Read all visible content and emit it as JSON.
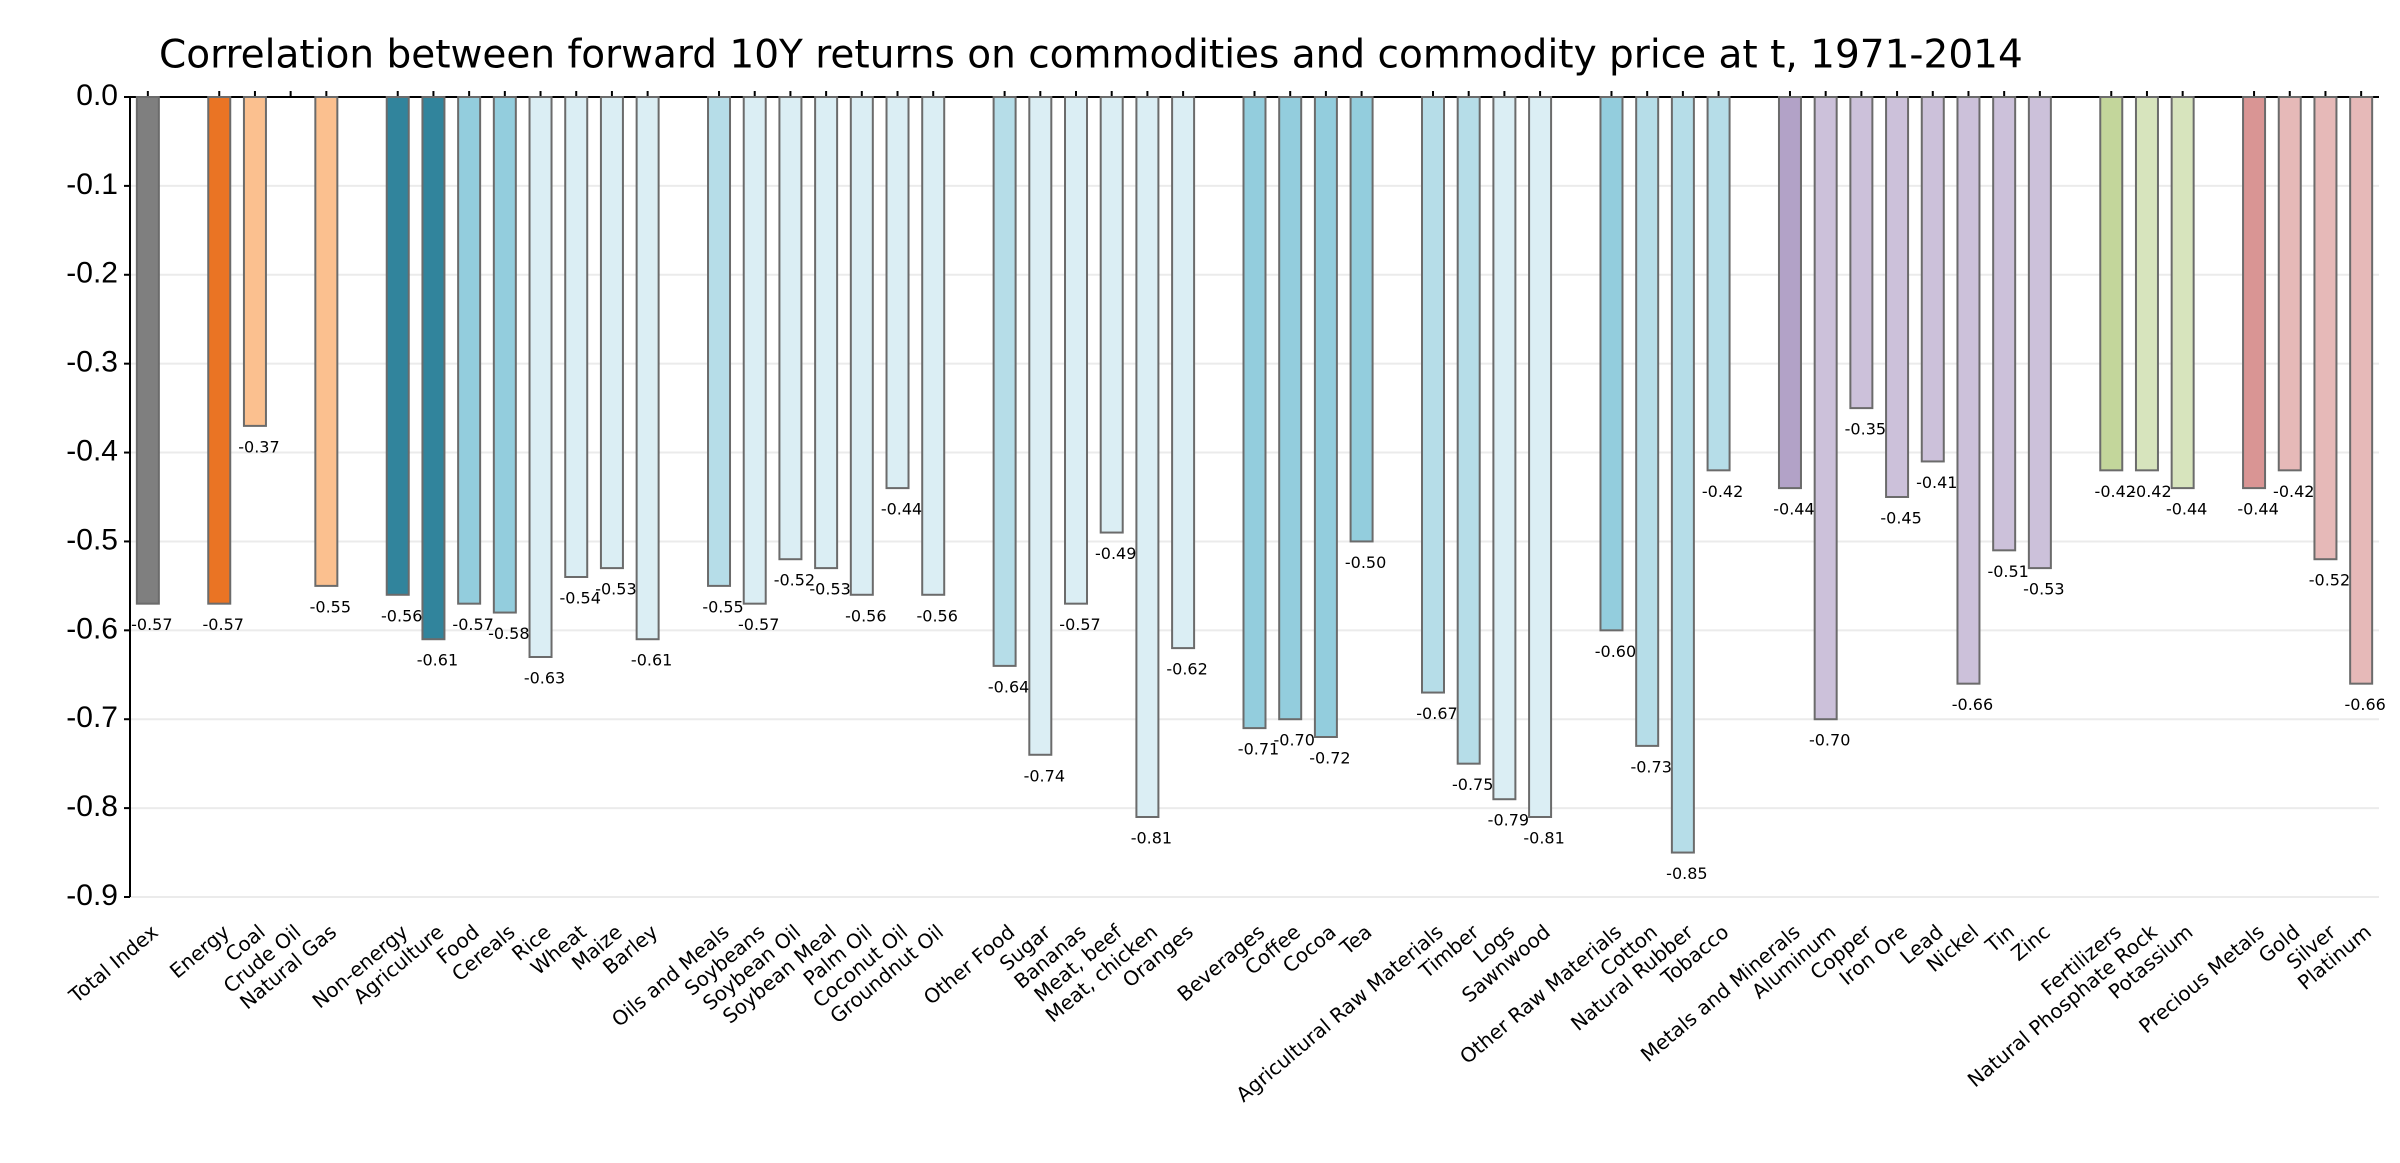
{
  "chart_data": {
    "type": "bar",
    "title": "Correlation between forward 10Y returns on commodities and commodity price at t, 1971-2014",
    "categories": [
      "Total Index",
      null,
      "Energy",
      "Coal",
      "Crude Oil",
      "Natural Gas",
      null,
      "Non-energy",
      "Agriculture",
      "Food",
      "Cereals",
      "Rice",
      "Wheat",
      "Maize",
      "Barley",
      null,
      "Oils and Meals",
      "Soybeans",
      "Soybean Oil",
      "Soybean Meal",
      "Palm Oil",
      "Coconut Oil",
      "Groundnut Oil",
      null,
      "Other Food",
      "Sugar",
      "Bananas",
      "Meat, beef",
      "Meat, chicken",
      "Oranges",
      null,
      "Beverages",
      "Coffee",
      "Cocoa",
      "Tea",
      null,
      "Agricultural Raw Materials",
      "Timber",
      "Logs",
      "Sawnwood",
      null,
      "Other Raw Materials",
      "Cotton",
      "Natural Rubber",
      "Tobacco",
      null,
      "Metals and Minerals",
      "Aluminum",
      "Copper",
      "Iron Ore",
      "Lead",
      "Nickel",
      "Tin",
      "Zinc",
      null,
      "Fertilizers",
      "Natural Phosphate Rock",
      "Potassium",
      null,
      "Precious Metals",
      "Gold",
      "Silver",
      "Platinum"
    ],
    "values": [
      -0.57,
      null,
      -0.57,
      -0.37,
      null,
      -0.55,
      null,
      -0.56,
      -0.61,
      -0.57,
      -0.58,
      -0.63,
      -0.54,
      -0.53,
      -0.61,
      null,
      -0.55,
      -0.57,
      -0.52,
      -0.53,
      -0.56,
      -0.44,
      -0.56,
      null,
      -0.64,
      -0.74,
      -0.57,
      -0.49,
      -0.81,
      -0.62,
      null,
      -0.71,
      -0.7,
      -0.72,
      -0.5,
      null,
      -0.67,
      -0.75,
      -0.79,
      -0.81,
      null,
      -0.6,
      -0.73,
      -0.85,
      -0.42,
      null,
      -0.44,
      -0.7,
      -0.35,
      -0.45,
      -0.41,
      -0.66,
      -0.51,
      -0.53,
      null,
      -0.42,
      -0.42,
      -0.44,
      null,
      -0.44,
      -0.42,
      -0.52,
      -0.66
    ],
    "value_labels": [
      "-0.57",
      null,
      "-0.57",
      "-0.37",
      null,
      "-0.55",
      null,
      "-0.56",
      "-0.61",
      "-0.57",
      "-0.58",
      "-0.63",
      "-0.54",
      "-0.53",
      "-0.61",
      null,
      "-0.55",
      "-0.57",
      "-0.52",
      "-0.53",
      "-0.56",
      "-0.44",
      "-0.56",
      null,
      "-0.64",
      "-0.74",
      "-0.57",
      "-0.49",
      "-0.81",
      "-0.62",
      null,
      "-0.71",
      "-0.70",
      "-0.72",
      "-0.50",
      null,
      "-0.67",
      "-0.75",
      "-0.79",
      "-0.81",
      null,
      "-0.60",
      "-0.73",
      "-0.85",
      "-0.42",
      null,
      "-0.44",
      "-0.70",
      "-0.35",
      "-0.45",
      "-0.41",
      "-0.66",
      "-0.51",
      "-0.53",
      null,
      "-0.42",
      "-0.42",
      "-0.44",
      null,
      "-0.44",
      "-0.42",
      "-0.52",
      "-0.66"
    ],
    "colors": [
      "#7f7f7f",
      null,
      "#ea7424",
      "#fbc08f",
      null,
      "#fbc08f",
      null,
      "#31849c",
      "#31849c",
      "#93cddd",
      "#93cddd",
      "#dbeef4",
      "#dbeef4",
      "#dbeef4",
      "#dbeef4",
      null,
      "#b6dde8",
      "#dbeef4",
      "#dbeef4",
      "#dbeef4",
      "#dbeef4",
      "#dbeef4",
      "#dbeef4",
      null,
      "#b6dde8",
      "#dbeef4",
      "#dbeef4",
      "#dbeef4",
      "#dbeef4",
      "#dbeef4",
      null,
      "#93cddd",
      "#93cddd",
      "#93cddd",
      "#93cddd",
      null,
      "#b6dde8",
      "#b6dde8",
      "#dbeef4",
      "#dbeef4",
      null,
      "#93cddd",
      "#b6dde8",
      "#b6dde8",
      "#b6dde8",
      null,
      "#b2a2c7",
      "#ccc1da",
      "#ccc1da",
      "#ccc1da",
      "#ccc1da",
      "#ccc1da",
      "#ccc1da",
      "#ccc1da",
      null,
      "#c3d69b",
      "#d7e4bd",
      "#d7e4bd",
      null,
      "#d99594",
      "#e6b9b8",
      "#e6b9b8",
      "#e6b9b8"
    ],
    "ylim": [
      0,
      -0.9
    ],
    "yticks": [
      {
        "value": 0,
        "label": "0.0"
      },
      -0.1,
      -0.2,
      -0.3,
      -0.4,
      -0.5,
      -0.6,
      -0.7,
      -0.8,
      -0.9
    ],
    "grid": true
  }
}
